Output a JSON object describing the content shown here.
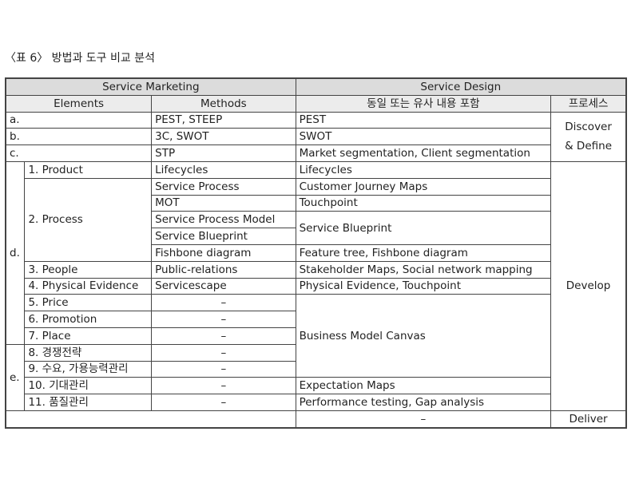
{
  "caption": "〈표 6〉 방법과 도구 비교 분석",
  "header": {
    "service_marketing": "Service Marketing",
    "service_design": "Service Design",
    "elements": "Elements",
    "methods": "Methods",
    "similar": "동일 또는 유사 내용 포함",
    "process": "프로세스"
  },
  "rows": {
    "a": {
      "label": "a.",
      "method": "PEST, STEEP",
      "design": "PEST"
    },
    "b": {
      "label": "b.",
      "method": "3C, SWOT",
      "design": "SWOT"
    },
    "c": {
      "label": "c.",
      "method": "STP",
      "design": "Market segmentation, Client segmentation"
    },
    "d": {
      "label": "d.",
      "product": {
        "label": "1. Product",
        "method": "Lifecycles",
        "design": "Lifecycles"
      },
      "process": {
        "label": "2. Process",
        "items": [
          {
            "method": "Service Process",
            "design": "Customer Journey Maps"
          },
          {
            "method": "MOT",
            "design": "Touchpoint"
          },
          {
            "method": "Service Process Model",
            "design": "Service Blueprint"
          },
          {
            "method": "Service Blueprint"
          },
          {
            "method": "Fishbone diagram",
            "design": "Feature tree, Fishbone diagram"
          }
        ]
      },
      "people": {
        "label": "3. People",
        "method": "Public-relations",
        "design": "Stakeholder Maps, Social network mapping"
      },
      "physical": {
        "label": "4. Physical Evidence",
        "method": "Servicescape",
        "design": "Physical Evidence, Touchpoint"
      },
      "price": {
        "label": "5. Price",
        "method": "–"
      },
      "promotion": {
        "label": "6. Promotion",
        "method": "–"
      },
      "place": {
        "label": "7. Place",
        "method": "–"
      }
    },
    "bmc": "Business Model Canvas",
    "e": {
      "label": "e.",
      "items": [
        {
          "label": "8. 경쟁전략",
          "method": "–"
        },
        {
          "label": "9. 수요, 가용능력관리",
          "method": "–"
        },
        {
          "label": "10. 기대관리",
          "method": "–",
          "design": "Expectation Maps"
        },
        {
          "label": "11. 품질관리",
          "method": "–",
          "design": "Performance testing, Gap analysis"
        }
      ]
    },
    "last": {
      "design": "–",
      "process": "Deliver"
    }
  },
  "phases": {
    "discover": "Discover",
    "define": "& Define",
    "develop": "Develop"
  }
}
